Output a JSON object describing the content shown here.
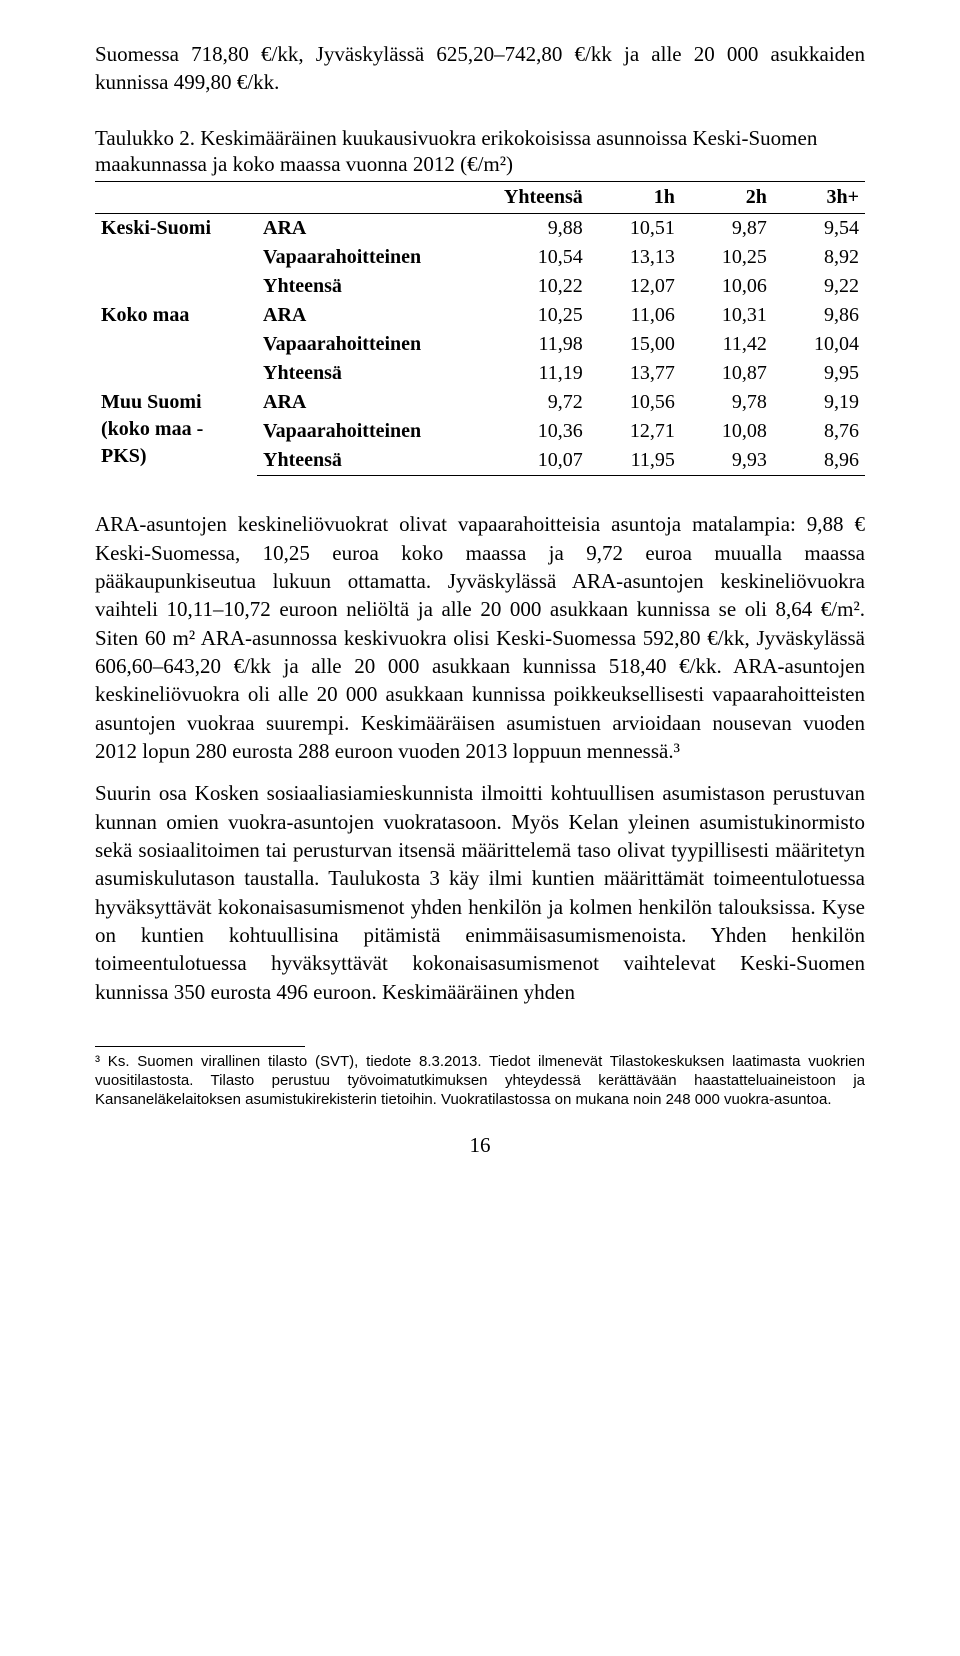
{
  "intro": "Suomessa 718,80 €/kk, Jyväskylässä 625,20–742,80 €/kk ja alle 20 000 asukkaiden kunnissa 499,80 €/kk.",
  "table": {
    "caption": "Taulukko 2. Keskimääräinen kuukausivuokra erikokoisissa asunnoissa Keski-Suomen maakunnassa ja koko maassa vuonna 2012 (€/m²)",
    "header": [
      "",
      "",
      "Yhteensä",
      "1h",
      "2h",
      "3h+"
    ],
    "groups": [
      {
        "label": "Keski-Suomi",
        "rows": [
          [
            "ARA",
            "9,88",
            "10,51",
            "9,87",
            "9,54"
          ],
          [
            "Vapaarahoitteinen",
            "10,54",
            "13,13",
            "10,25",
            "8,92"
          ],
          [
            "Yhteensä",
            "10,22",
            "12,07",
            "10,06",
            "9,22"
          ]
        ]
      },
      {
        "label": "Koko maa",
        "rows": [
          [
            "ARA",
            "10,25",
            "11,06",
            "10,31",
            "9,86"
          ],
          [
            "Vapaarahoitteinen",
            "11,98",
            "15,00",
            "11,42",
            "10,04"
          ],
          [
            "Yhteensä",
            "11,19",
            "13,77",
            "10,87",
            "9,95"
          ]
        ]
      },
      {
        "label": "Muu Suomi (koko maa - PKS)",
        "rows": [
          [
            "ARA",
            "9,72",
            "10,56",
            "9,78",
            "9,19"
          ],
          [
            "Vapaarahoitteinen",
            "10,36",
            "12,71",
            "10,08",
            "8,76"
          ],
          [
            "Yhteensä",
            "10,07",
            "11,95",
            "9,93",
            "8,96"
          ]
        ]
      }
    ]
  },
  "para1": "ARA-asuntojen keskineliövuokrat olivat vapaarahoitteisia asuntoja matalampia: 9,88 € Keski-Suomessa, 10,25 euroa koko maassa ja 9,72 euroa muualla maassa pääkaupunkiseutua lukuun ottamatta. Jyväskylässä ARA-asuntojen keskineliövuokra vaihteli 10,11–10,72 euroon neliöltä ja alle 20 000 asukkaan kunnissa se oli 8,64 €/m². Siten 60 m² ARA-asunnossa keskivuokra olisi Keski-Suomessa 592,80 €/kk, Jyväskylässä 606,60–643,20 €/kk ja alle 20 000 asukkaan kunnissa 518,40 €/kk. ARA-asuntojen keskineliövuokra oli alle 20 000 asukkaan kunnissa poikkeuksellisesti vapaarahoitteisten asuntojen vuokraa suurempi. Keskimääräisen asumistuen arvioidaan nousevan vuoden 2012 lopun 280 eurosta 288 euroon vuoden 2013 loppuun mennessä.³",
  "para2": "Suurin osa Kosken sosiaaliasiamieskunnista ilmoitti kohtuullisen asumistason perustuvan kunnan omien vuokra-asuntojen vuokratasoon. Myös Kelan yleinen asumistukinormisto sekä sosiaalitoimen tai perusturvan itsensä määrittelemä taso olivat tyypillisesti määritetyn asumiskulutason taustalla. Taulukosta 3 käy ilmi kuntien määrittämät toimeentulotuessa hyväksyttävät kokonaisasumismenot yhden henkilön ja kolmen henkilön talouksissa. Kyse on kuntien kohtuullisina pitämistä enimmäisasumismenoista. Yhden henkilön toimeentulotuessa hyväksyttävät kokonaisasumismenot vaihtelevat Keski-Suomen kunnissa 350 eurosta 496 euroon. Keskimääräinen yhden",
  "footnote": "³ Ks. Suomen virallinen tilasto (SVT), tiedote 8.3.2013. Tiedot ilmenevät Tilastokeskuksen laatimasta vuokrien vuositilastosta. Tilasto perustuu työvoimatutkimuksen yhteydessä kerättävään haastatteluaineistoon ja Kansaneläkelaitoksen asumistukirekisterin tietoihin. Vuokratilastossa on mukana noin 248 000 vuokra-asuntoa.",
  "pagenum": "16"
}
